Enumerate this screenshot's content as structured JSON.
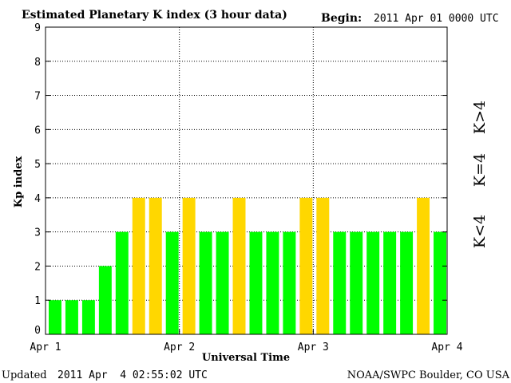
{
  "header": {
    "title": "Estimated Planetary K index (3 hour data)",
    "begin_label": "Begin:",
    "begin_value": "2011 Apr 01 0000 UTC"
  },
  "footer": {
    "updated_label": "Updated",
    "updated_value": "2011 Apr  4 02:55:02 UTC",
    "credit": "NOAA/SWPC Boulder, CO USA"
  },
  "colors": {
    "low": "#00ff00",
    "mid": "#ffd700",
    "high": "#ff2b00",
    "grid": "#000000"
  },
  "legend": {
    "low_label": "K<4",
    "mid_label": "K=4",
    "high_label": "K>4"
  },
  "chart_data": {
    "type": "bar",
    "title": "Estimated Planetary K index (3 hour data)",
    "xlabel": "Universal Time",
    "ylabel": "Kp index",
    "ylim": [
      0,
      9
    ],
    "yticks": [
      "0",
      "1",
      "2",
      "3",
      "4",
      "5",
      "6",
      "7",
      "8",
      "9"
    ],
    "xticks": [
      "Apr 1",
      "Apr 2",
      "Apr 3",
      "Apr 4"
    ],
    "bins_per_day": 8,
    "grid": true,
    "legend_position": "right",
    "values": [
      1,
      1,
      1,
      2,
      3,
      4,
      4,
      3,
      4,
      3,
      3,
      4,
      3,
      3,
      3,
      4,
      4,
      3,
      3,
      3,
      3,
      3,
      4,
      3
    ]
  }
}
